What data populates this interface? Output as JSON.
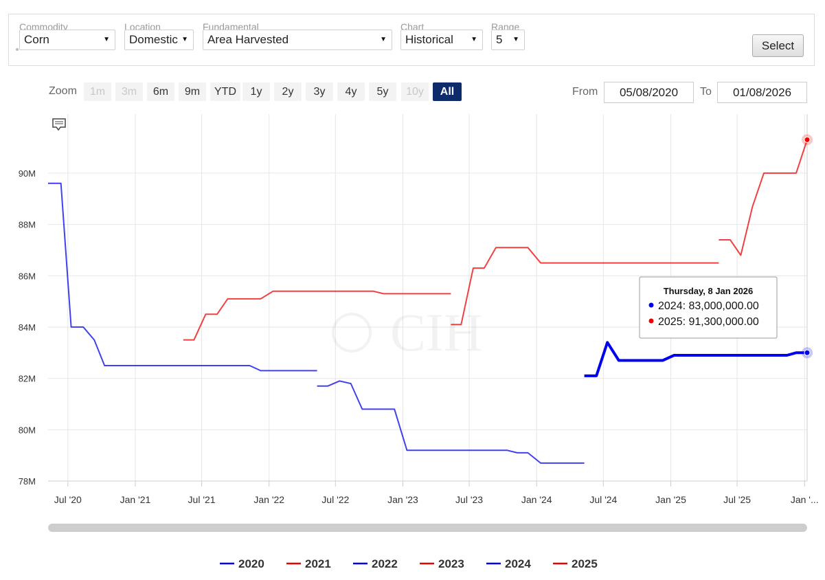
{
  "filters": {
    "commodity": {
      "label": "Commodity",
      "value": "Corn"
    },
    "location": {
      "label": "Location",
      "value": "Domestic"
    },
    "fundamental": {
      "label": "Fundamental",
      "value": "Area Harvested"
    },
    "chart": {
      "label": "Chart",
      "value": "Historical"
    },
    "range": {
      "label": "Range",
      "value": "5"
    },
    "select_label": "Select"
  },
  "zoom": {
    "label": "Zoom",
    "buttons": [
      {
        "label": "1m",
        "state": "disabled"
      },
      {
        "label": "3m",
        "state": "disabled"
      },
      {
        "label": "6m",
        "state": "normal"
      },
      {
        "label": "9m",
        "state": "normal"
      },
      {
        "label": "YTD",
        "state": "normal"
      },
      {
        "label": "1y",
        "state": "normal"
      },
      {
        "label": "2y",
        "state": "normal"
      },
      {
        "label": "3y",
        "state": "normal"
      },
      {
        "label": "4y",
        "state": "normal"
      },
      {
        "label": "5y",
        "state": "normal"
      },
      {
        "label": "10y",
        "state": "disabled"
      },
      {
        "label": "All",
        "state": "active"
      }
    ],
    "from_label": "From",
    "from_value": "05/08/2020",
    "to_label": "To",
    "to_value": "01/08/2026"
  },
  "watermark": "CIH",
  "colors": {
    "blue": "#0000ee",
    "red": "#ee0000",
    "grid": "#e6e6e6",
    "active_zoom": "#0d2b6b"
  },
  "chart_data": {
    "type": "line",
    "x_tick_labels": [
      "Jul '20",
      "Jan '21",
      "Jul '21",
      "Jan '22",
      "Jul '22",
      "Jan '23",
      "Jul '23",
      "Jan '24",
      "Jul '24",
      "Jan '25",
      "Jul '25",
      "Jan '..."
    ],
    "x_tick_dates": [
      "2020-07-01",
      "2021-01-01",
      "2021-07-01",
      "2022-01-01",
      "2022-07-01",
      "2023-01-01",
      "2023-07-01",
      "2024-01-01",
      "2024-07-01",
      "2025-01-01",
      "2025-07-01",
      "2026-01-01"
    ],
    "y_tick_labels": [
      "78M",
      "80M",
      "82M",
      "84M",
      "86M",
      "88M",
      "90M"
    ],
    "y_ticks": [
      78000000,
      80000000,
      82000000,
      84000000,
      86000000,
      88000000,
      90000000
    ],
    "ylim": [
      78000000,
      92300000
    ],
    "xlim": [
      "2020-05-08",
      "2026-01-08"
    ],
    "grid": true,
    "legend_position": "bottom-center",
    "series": [
      {
        "name": "2020",
        "color": "#0000ee",
        "emphasis": false,
        "points": [
          [
            "2020-05-08",
            89600000
          ],
          [
            "2020-06-12",
            89600000
          ],
          [
            "2020-07-10",
            84000000
          ],
          [
            "2020-08-12",
            84000000
          ],
          [
            "2020-09-11",
            83500000
          ],
          [
            "2020-10-09",
            82500000
          ],
          [
            "2021-06-30",
            82500000
          ],
          [
            "2021-11-09",
            82500000
          ],
          [
            "2021-12-09",
            82300000
          ],
          [
            "2022-05-12",
            82300000
          ]
        ]
      },
      {
        "name": "2021",
        "color": "#ee0000",
        "emphasis": false,
        "points": [
          [
            "2021-05-12",
            83500000
          ],
          [
            "2021-06-10",
            83500000
          ],
          [
            "2021-07-12",
            84500000
          ],
          [
            "2021-08-12",
            84500000
          ],
          [
            "2021-09-10",
            85100000
          ],
          [
            "2021-11-09",
            85100000
          ],
          [
            "2021-12-09",
            85100000
          ],
          [
            "2022-01-12",
            85400000
          ],
          [
            "2022-06-30",
            85400000
          ],
          [
            "2022-10-12",
            85400000
          ],
          [
            "2022-11-09",
            85300000
          ],
          [
            "2023-05-12",
            85300000
          ]
        ]
      },
      {
        "name": "2022",
        "color": "#0000ee",
        "emphasis": false,
        "points": [
          [
            "2022-05-12",
            81700000
          ],
          [
            "2022-06-10",
            81700000
          ],
          [
            "2022-07-12",
            81900000
          ],
          [
            "2022-08-12",
            81800000
          ],
          [
            "2022-09-12",
            80800000
          ],
          [
            "2022-11-09",
            80800000
          ],
          [
            "2022-12-09",
            80800000
          ],
          [
            "2023-01-12",
            79200000
          ],
          [
            "2023-06-09",
            79200000
          ],
          [
            "2023-10-12",
            79200000
          ],
          [
            "2023-11-09",
            79100000
          ],
          [
            "2023-12-08",
            79100000
          ],
          [
            "2024-01-12",
            78700000
          ],
          [
            "2024-05-10",
            78700000
          ]
        ]
      },
      {
        "name": "2023",
        "color": "#ee0000",
        "emphasis": false,
        "points": [
          [
            "2023-05-12",
            84100000
          ],
          [
            "2023-06-09",
            84100000
          ],
          [
            "2023-07-12",
            86300000
          ],
          [
            "2023-08-11",
            86300000
          ],
          [
            "2023-09-12",
            87100000
          ],
          [
            "2023-11-09",
            87100000
          ],
          [
            "2023-12-08",
            87100000
          ],
          [
            "2024-01-12",
            86500000
          ],
          [
            "2024-06-28",
            86500000
          ],
          [
            "2025-05-12",
            86500000
          ]
        ]
      },
      {
        "name": "2024",
        "color": "#0000ee",
        "emphasis": true,
        "points": [
          [
            "2024-05-10",
            82100000
          ],
          [
            "2024-06-12",
            82100000
          ],
          [
            "2024-07-12",
            83400000
          ],
          [
            "2024-08-12",
            82700000
          ],
          [
            "2024-11-08",
            82700000
          ],
          [
            "2024-12-10",
            82700000
          ],
          [
            "2025-01-10",
            82900000
          ],
          [
            "2025-06-30",
            82900000
          ],
          [
            "2025-11-14",
            82900000
          ],
          [
            "2025-12-09",
            83000000
          ],
          [
            "2026-01-08",
            83000000
          ]
        ]
      },
      {
        "name": "2025",
        "color": "#ee0000",
        "emphasis": false,
        "points": [
          [
            "2025-05-12",
            87400000
          ],
          [
            "2025-06-12",
            87400000
          ],
          [
            "2025-07-11",
            86800000
          ],
          [
            "2025-08-12",
            88700000
          ],
          [
            "2025-09-12",
            90000000
          ],
          [
            "2025-11-14",
            90000000
          ],
          [
            "2025-12-09",
            90000000
          ],
          [
            "2026-01-08",
            91300000
          ]
        ]
      }
    ],
    "tooltip": {
      "title": "Thursday, 8 Jan 2026",
      "rows": [
        {
          "series": "2024",
          "color": "#0000ee",
          "value": "83,000,000.00"
        },
        {
          "series": "2025",
          "color": "#ee0000",
          "value": "91,300,000.00"
        }
      ]
    }
  }
}
